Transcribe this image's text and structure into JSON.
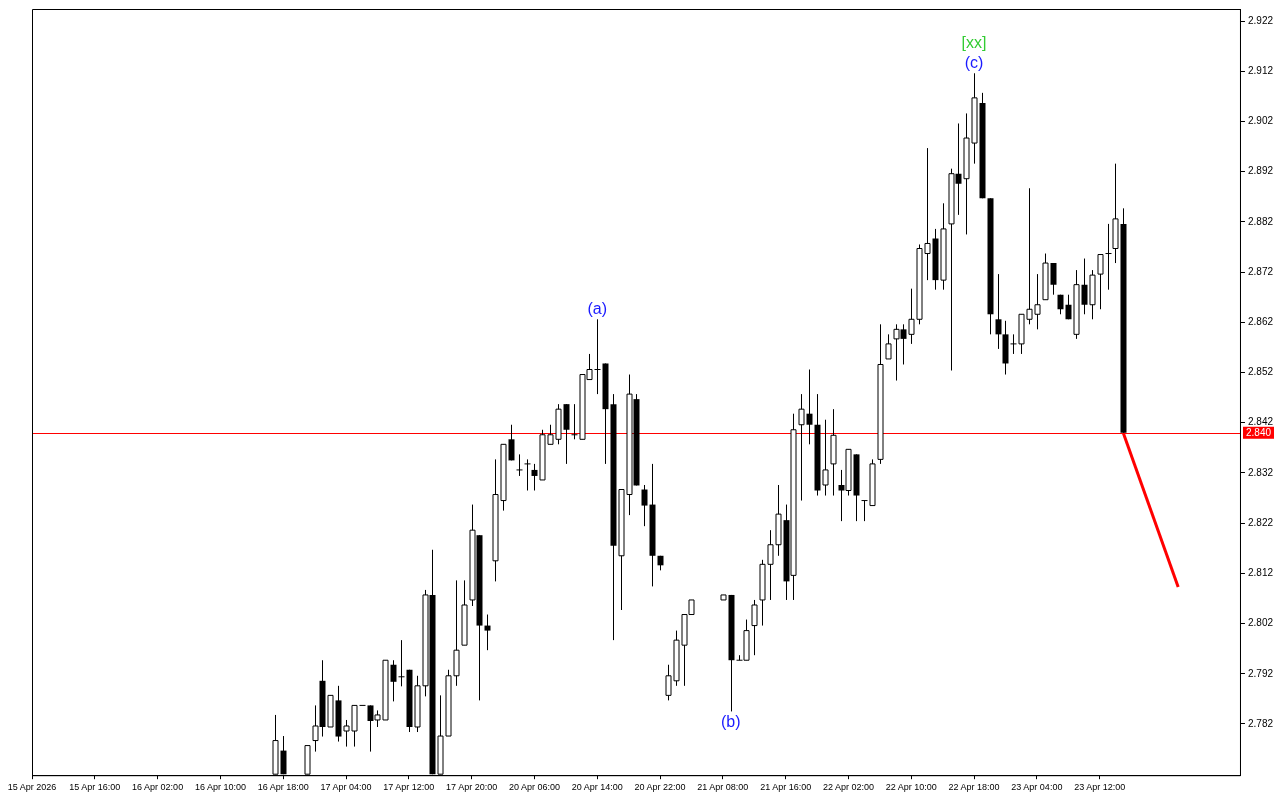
{
  "chart_data": {
    "type": "candlestick",
    "categories": [
      "15 Apr 2026",
      null,
      null,
      null,
      null,
      null,
      null,
      null,
      "15 Apr 16:00",
      null,
      null,
      null,
      null,
      null,
      null,
      null,
      "16 Apr 02:00",
      null,
      null,
      null,
      null,
      null,
      null,
      null,
      "16 Apr 10:00",
      null,
      null,
      null,
      null,
      null,
      null,
      null,
      "16 Apr 18:00",
      null,
      null,
      null,
      null,
      null,
      null,
      null,
      "17 Apr 04:00",
      null,
      null,
      null,
      null,
      null,
      null,
      null,
      "17 Apr 12:00",
      null,
      null,
      null,
      null,
      null,
      null,
      null,
      "17 Apr 20:00",
      null,
      null,
      null,
      null,
      null,
      null,
      null,
      "20 Apr 06:00",
      null,
      null,
      null,
      null,
      null,
      null,
      null,
      "20 Apr 14:00",
      null,
      null,
      null,
      null,
      null,
      null,
      null,
      "20 Apr 22:00",
      null,
      null,
      null,
      null,
      null,
      null,
      null,
      "21 Apr 08:00",
      null,
      null,
      null,
      null,
      null,
      null,
      null,
      "21 Apr 16:00",
      null,
      null,
      null,
      null,
      null,
      null,
      null,
      "22 Apr 02:00",
      null,
      null,
      null,
      null,
      null,
      null,
      null,
      "22 Apr 10:00",
      null,
      null,
      null,
      null,
      null,
      null,
      null,
      "22 Apr 18:00",
      null,
      null,
      null,
      null,
      null,
      null,
      null,
      "23 Apr 04:00",
      null,
      null,
      null,
      null,
      null,
      null,
      null,
      "23 Apr 12:00",
      null,
      null,
      null,
      null,
      null,
      null,
      null,
      null,
      null,
      null,
      null,
      null,
      null,
      null,
      null,
      null,
      null,
      null
    ],
    "ohlc": [
      null,
      null,
      null,
      null,
      null,
      null,
      null,
      null,
      null,
      null,
      null,
      null,
      null,
      null,
      null,
      null,
      null,
      null,
      null,
      null,
      null,
      null,
      null,
      null,
      null,
      null,
      null,
      null,
      null,
      null,
      null,
      [
        2.772,
        2.7838,
        2.772,
        2.7787
      ],
      [
        2.7767,
        2.7796,
        2.772,
        2.772
      ],
      null,
      null,
      [
        2.772,
        2.7777,
        2.772,
        2.7777
      ],
      [
        2.7787,
        2.7857,
        2.7765,
        2.7816
      ],
      [
        2.7906,
        2.7947,
        2.7795,
        2.7814
      ],
      [
        2.7814,
        2.7877,
        2.7814,
        2.7877
      ],
      [
        2.7867,
        2.7896,
        2.7785,
        2.7795
      ],
      [
        2.7806,
        2.7828,
        2.7775,
        2.7816
      ],
      [
        2.7806,
        2.7857,
        2.7775,
        2.7857
      ],
      [
        2.7857,
        2.7857,
        2.7857,
        2.7857
      ],
      [
        2.7857,
        2.7857,
        2.7765,
        2.7826
      ],
      [
        2.7828,
        2.7847,
        2.7814,
        2.7838
      ],
      [
        2.7828,
        2.7947,
        2.7828,
        2.7947
      ],
      [
        2.7938,
        2.7947,
        2.7865,
        2.7904
      ],
      [
        2.7914,
        2.7987,
        2.7895,
        2.7914
      ],
      [
        2.7928,
        2.7928,
        2.7804,
        2.7814
      ],
      [
        2.7814,
        2.7916,
        2.7804,
        2.7896
      ],
      [
        2.7896,
        2.8087,
        2.7875,
        2.8077
      ],
      [
        2.8077,
        2.8167,
        2.772,
        2.772
      ],
      [
        2.772,
        2.7877,
        2.772,
        2.7796
      ],
      [
        2.7796,
        2.7928,
        2.7796,
        2.7916
      ],
      [
        2.7916,
        2.8106,
        2.7896,
        2.7967
      ],
      [
        2.7977,
        2.8106,
        2.7977,
        2.8057
      ],
      [
        2.8067,
        2.8257,
        2.8055,
        2.8206
      ],
      [
        2.8196,
        2.8196,
        2.7867,
        2.8016
      ],
      [
        2.8016,
        2.8038,
        2.7967,
        2.8006
      ],
      [
        2.8145,
        2.8347,
        2.8104,
        2.8277
      ],
      [
        2.8265,
        2.8377,
        2.8245,
        2.8377
      ],
      [
        2.8387,
        2.8416,
        2.8345,
        2.8345
      ],
      [
        2.8326,
        2.8357,
        2.8314,
        2.8326
      ],
      [
        2.8338,
        2.8347,
        2.8285,
        2.8338
      ],
      [
        2.8326,
        2.8338,
        2.8285,
        2.8314
      ],
      [
        2.8306,
        2.8406,
        2.8306,
        2.8396
      ],
      [
        2.8377,
        2.8416,
        2.8377,
        2.8396
      ],
      [
        2.8387,
        2.8457,
        2.8377,
        2.8447
      ],
      [
        2.8457,
        2.8457,
        2.8338,
        2.8406
      ],
      [
        2.8396,
        2.8457,
        2.8387,
        2.8396
      ],
      [
        2.8387,
        2.8516,
        2.8387,
        2.8516
      ],
      [
        2.8506,
        2.8557,
        2.8506,
        2.8526
      ],
      [
        2.8526,
        2.8626,
        2.8477,
        2.8526
      ],
      [
        2.8538,
        2.8538,
        2.8338,
        2.8447
      ],
      [
        2.8457,
        2.8477,
        2.7987,
        2.8175
      ],
      [
        2.8155,
        2.8287,
        2.8047,
        2.8287
      ],
      [
        2.8277,
        2.8516,
        2.8236,
        2.8477
      ],
      [
        2.8467,
        2.8477,
        2.8295,
        2.8295
      ],
      [
        2.8287,
        2.8296,
        2.8214,
        2.8255
      ],
      [
        2.8257,
        2.8338,
        2.8094,
        2.8155
      ],
      [
        2.8155,
        2.8155,
        2.8126,
        2.8136
      ],
      [
        2.7877,
        2.7938,
        2.7867,
        2.7916
      ],
      [
        2.7906,
        2.8006,
        2.7896,
        2.7987
      ],
      [
        2.7977,
        2.8038,
        2.7896,
        2.8038
      ],
      [
        2.8038,
        2.8067,
        2.8038,
        2.8067
      ],
      null,
      null,
      null,
      [
        2.8067,
        2.8077,
        2.8067,
        2.8077
      ],
      [
        2.8077,
        2.8077,
        2.7845,
        2.7947
      ],
      [
        2.7947,
        2.7957,
        2.7947,
        2.7947
      ],
      [
        2.7947,
        2.8028,
        2.7947,
        2.8006
      ],
      [
        2.8016,
        2.8067,
        2.7957,
        2.8057
      ],
      [
        2.8067,
        2.8147,
        2.8016,
        2.8138
      ],
      [
        2.8138,
        2.8206,
        2.8067,
        2.8177
      ],
      [
        2.8177,
        2.8296,
        2.8155,
        2.8238
      ],
      [
        2.8226,
        2.8257,
        2.8067,
        2.8104
      ],
      [
        2.8116,
        2.8438,
        2.8067,
        2.8406
      ],
      [
        2.8416,
        2.8477,
        2.8265,
        2.8447
      ],
      [
        2.8438,
        2.8526,
        2.8377,
        2.8416
      ],
      [
        2.8416,
        2.8477,
        2.8275,
        2.8285
      ],
      [
        2.8296,
        2.8426,
        2.8275,
        2.8326
      ],
      [
        2.8338,
        2.8447,
        2.8275,
        2.8395
      ],
      [
        2.8296,
        2.8326,
        2.8224,
        2.8285
      ],
      [
        2.8285,
        2.8367,
        2.8275,
        2.8367
      ],
      [
        2.8357,
        2.8357,
        2.8224,
        2.8275
      ],
      [
        2.8265,
        2.8265,
        2.8224,
        2.8265
      ],
      [
        2.8255,
        2.8347,
        2.8255,
        2.8338
      ],
      [
        2.8347,
        2.8616,
        2.8338,
        2.8536
      ],
      [
        2.8547,
        2.8596,
        2.8547,
        2.8577
      ],
      [
        2.8587,
        2.8616,
        2.8504,
        2.8606
      ],
      [
        2.8606,
        2.8616,
        2.8536,
        2.8587
      ],
      [
        2.8596,
        2.8687,
        2.8577,
        2.8626
      ],
      [
        2.8626,
        2.8775,
        2.8616,
        2.8767
      ],
      [
        2.8757,
        2.8967,
        2.8704,
        2.8777
      ],
      [
        2.8787,
        2.8806,
        2.8685,
        2.8704
      ],
      [
        2.8704,
        2.8857,
        2.8685,
        2.8806
      ],
      [
        2.8816,
        2.8926,
        2.8524,
        2.8916
      ],
      [
        2.8916,
        2.9016,
        2.8834,
        2.8896
      ],
      [
        2.8906,
        2.9036,
        2.8795,
        2.8987
      ],
      [
        2.8977,
        2.9116,
        2.8936,
        2.9067
      ],
      [
        2.9057,
        2.9077,
        2.8867,
        2.8867
      ],
      [
        2.8867,
        2.8867,
        2.8596,
        2.8636
      ],
      [
        2.8626,
        2.8716,
        2.8567,
        2.8596
      ],
      [
        2.8596,
        2.8623,
        2.8516,
        2.8538
      ],
      [
        2.8577,
        2.8596,
        2.8557,
        2.8577
      ],
      [
        2.8577,
        2.8636,
        2.8557,
        2.8636
      ],
      [
        2.8626,
        2.8887,
        2.8616,
        2.8646
      ],
      [
        2.8636,
        2.8716,
        2.8606,
        2.8655
      ],
      [
        2.8665,
        2.8757,
        2.8665,
        2.8738
      ],
      [
        2.8738,
        2.8738,
        2.8675,
        2.8695
      ],
      [
        2.8675,
        2.8675,
        2.8636,
        2.8646
      ],
      [
        2.8655,
        2.8675,
        2.8626,
        2.8626
      ],
      [
        2.8596,
        2.8724,
        2.8587,
        2.8695
      ],
      [
        2.8695,
        2.8747,
        2.8636,
        2.8655
      ],
      [
        2.8655,
        2.8724,
        2.8626,
        2.8714
      ],
      [
        2.8716,
        2.8755,
        2.8646,
        2.8755
      ],
      [
        2.8757,
        2.8816,
        2.8685,
        2.8757
      ],
      [
        2.8767,
        2.8936,
        2.8738,
        2.8826
      ],
      [
        2.8816,
        2.8847,
        2.84,
        2.84
      ],
      null,
      null,
      null,
      null,
      null,
      null,
      null,
      null,
      null,
      null,
      null,
      null,
      null,
      null,
      null
    ],
    "series": [
      {
        "type": "line",
        "color": "#ff0000",
        "values": [
          null,
          null,
          null,
          null,
          null,
          null,
          null,
          null,
          null,
          null,
          null,
          null,
          null,
          null,
          null,
          null,
          null,
          null,
          null,
          null,
          null,
          null,
          null,
          null,
          null,
          null,
          null,
          null,
          null,
          null,
          null,
          null,
          null,
          null,
          null,
          null,
          null,
          null,
          null,
          null,
          null,
          null,
          null,
          null,
          null,
          null,
          null,
          null,
          null,
          null,
          null,
          null,
          null,
          null,
          null,
          null,
          null,
          null,
          null,
          null,
          null,
          null,
          null,
          null,
          null,
          null,
          null,
          null,
          null,
          null,
          null,
          null,
          null,
          null,
          null,
          null,
          null,
          null,
          null,
          null,
          null,
          null,
          null,
          null,
          null,
          null,
          null,
          null,
          null,
          null,
          null,
          null,
          null,
          null,
          null,
          null,
          null,
          null,
          null,
          null,
          null,
          null,
          null,
          null,
          null,
          null,
          null,
          null,
          null,
          null,
          null,
          null,
          null,
          null,
          null,
          null,
          null,
          null,
          null,
          null,
          null,
          null,
          null,
          null,
          null,
          null,
          null,
          null,
          null,
          null,
          null,
          null,
          null,
          null,
          null,
          null,
          null,
          null,
          null,
          2.84,
          null,
          null,
          null,
          null,
          null,
          null,
          2.8093,
          null,
          null,
          null,
          null,
          null,
          null,
          null,
          null
        ]
      }
    ],
    "ylim": [
      2.7718,
      2.9244
    ],
    "yticks": [
      2.782,
      2.792,
      2.802,
      2.812,
      2.822,
      2.832,
      2.842,
      2.852,
      2.862,
      2.872,
      2.882,
      2.892,
      2.902,
      2.912,
      2.922
    ],
    "ref_lines": [
      {
        "axis": "y",
        "value": 2.84,
        "label": "2.840",
        "color": "#ff0000"
      }
    ],
    "annotations": [
      {
        "text": "(a)",
        "y": 2.8626
      },
      {
        "text": "(b)",
        "y": 2.7845
      },
      {
        "text": "(c)",
        "y": 2.9116
      },
      {
        "text": "[xx]",
        "y": 2.9116
      }
    ]
  }
}
